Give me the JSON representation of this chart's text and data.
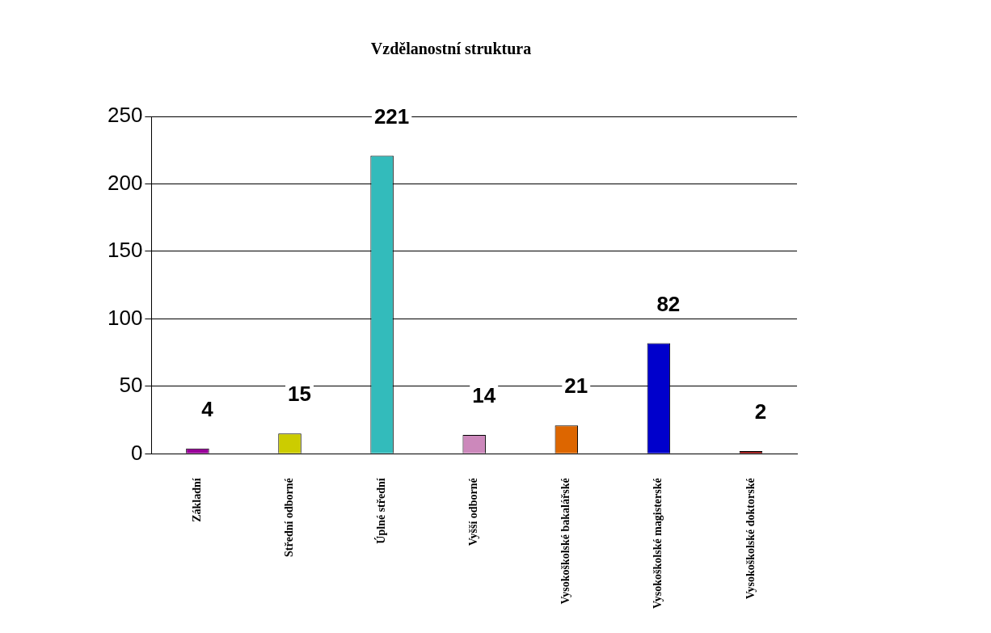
{
  "chart_data": {
    "type": "bar",
    "title": "Vzdělanostní struktura",
    "categories": [
      "Základní",
      "Střední odborné",
      "Úplné střední",
      "Vyšší odborné",
      "Vysokoškolské bakalářské",
      "Vysokoškolské magisterské",
      "Vysokoškolské doktorské"
    ],
    "values": [
      4,
      15,
      221,
      14,
      21,
      82,
      2
    ],
    "colors": [
      "#990099",
      "#cccc00",
      "#33bbbb",
      "#cc88bb",
      "#dd6600",
      "#0000cc",
      "#990000"
    ],
    "ylim": [
      0,
      250
    ],
    "yticks": [
      0,
      50,
      100,
      150,
      200,
      250
    ],
    "grid": "y",
    "data_labels": true,
    "legend": false
  }
}
